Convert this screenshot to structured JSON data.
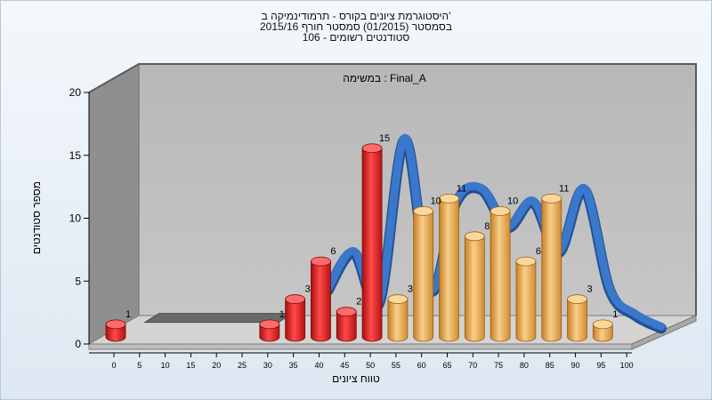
{
  "chart_data": {
    "type": "bar",
    "title_lines": [
      "היסטוגרמת ציונים בקורס - תרמודינמיקה ב'",
      "בסמסטר  (01/2015)  סמסטר חורף 2015/16",
      "סטודנטים רשומים - 106"
    ],
    "annotation": "במשימה : Final_A",
    "xlabel": "טווח ציונים",
    "ylabel": "מספר סטודנטים",
    "ylim": [
      0,
      20
    ],
    "y_ticks": [
      0,
      5,
      10,
      15,
      20
    ],
    "x_ticks": [
      0,
      5,
      10,
      15,
      20,
      25,
      30,
      35,
      40,
      45,
      50,
      55,
      60,
      65,
      70,
      75,
      80,
      85,
      90,
      95,
      100
    ],
    "bins": [
      0,
      5,
      10,
      15,
      20,
      25,
      30,
      35,
      40,
      45,
      50,
      55,
      60,
      65,
      70,
      75,
      80,
      85,
      90,
      95,
      100
    ],
    "values": [
      1,
      0,
      0,
      0,
      0,
      0,
      1,
      3,
      6,
      2,
      15,
      3,
      10,
      11,
      8,
      10,
      6,
      11,
      3,
      1,
      0
    ],
    "colors": {
      "fail": "#d81818",
      "pass": "#e8a040",
      "curve": "#3a78cc",
      "wall_side": "#8f8f8f",
      "wall_back": "#bdbdbd",
      "floor": "#d4d4d4"
    },
    "fail_below": 55,
    "grid": false
  }
}
